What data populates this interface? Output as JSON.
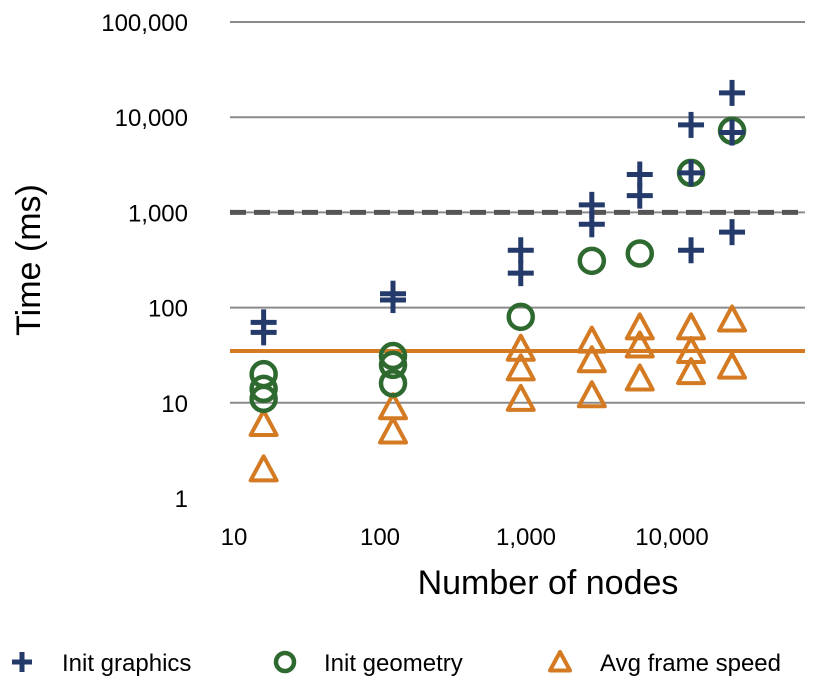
{
  "chart_data": {
    "type": "scatter",
    "xlabel": "Number of nodes",
    "ylabel": "Time (ms)",
    "x_scale": "log",
    "y_scale": "log",
    "xlim": [
      10,
      40000
    ],
    "ylim": [
      1,
      100000
    ],
    "x_ticks": [
      10,
      100,
      1000,
      10000
    ],
    "x_tick_labels": [
      "10",
      "100",
      "1,000",
      "10,000"
    ],
    "y_ticks": [
      1,
      10,
      100,
      1000,
      10000,
      100000
    ],
    "y_tick_labels": [
      "1",
      "10",
      "100",
      "1,000",
      "10,000",
      "100,000"
    ],
    "grid": true,
    "legend_position": "bottom",
    "reference_lines": [
      {
        "y": 1000,
        "color": "#555555",
        "style": "dashed"
      },
      {
        "y": 35,
        "color": "#d47a22",
        "style": "solid"
      }
    ],
    "series": [
      {
        "name": "Init graphics",
        "marker": "plus",
        "color": "#233a6a",
        "points": [
          [
            13,
            55
          ],
          [
            13,
            70
          ],
          [
            100,
            120
          ],
          [
            100,
            140
          ],
          [
            750,
            230
          ],
          [
            750,
            400
          ],
          [
            2300,
            750
          ],
          [
            2300,
            1200
          ],
          [
            4900,
            1500
          ],
          [
            4900,
            2500
          ],
          [
            11000,
            400
          ],
          [
            11000,
            2600
          ],
          [
            11000,
            8300
          ],
          [
            21000,
            620
          ],
          [
            21000,
            6900
          ],
          [
            21000,
            18000
          ]
        ]
      },
      {
        "name": "Init geometry",
        "marker": "circle",
        "color": "#2e6a30",
        "points": [
          [
            13,
            11
          ],
          [
            13,
            14
          ],
          [
            13,
            20
          ],
          [
            100,
            16
          ],
          [
            100,
            25
          ],
          [
            100,
            31
          ],
          [
            750,
            80
          ],
          [
            2300,
            310
          ],
          [
            4900,
            370
          ],
          [
            11000,
            2600
          ],
          [
            21000,
            7200
          ]
        ]
      },
      {
        "name": "Avg frame speed",
        "marker": "triangle",
        "color": "#d47a22",
        "points": [
          [
            13,
            2
          ],
          [
            13,
            6
          ],
          [
            100,
            5
          ],
          [
            100,
            9
          ],
          [
            750,
            11
          ],
          [
            750,
            23
          ],
          [
            750,
            37
          ],
          [
            2300,
            12
          ],
          [
            2300,
            28
          ],
          [
            2300,
            45
          ],
          [
            4900,
            18
          ],
          [
            4900,
            40
          ],
          [
            4900,
            62
          ],
          [
            11000,
            21
          ],
          [
            11000,
            35
          ],
          [
            11000,
            62
          ],
          [
            21000,
            24
          ],
          [
            21000,
            75
          ]
        ]
      }
    ]
  }
}
